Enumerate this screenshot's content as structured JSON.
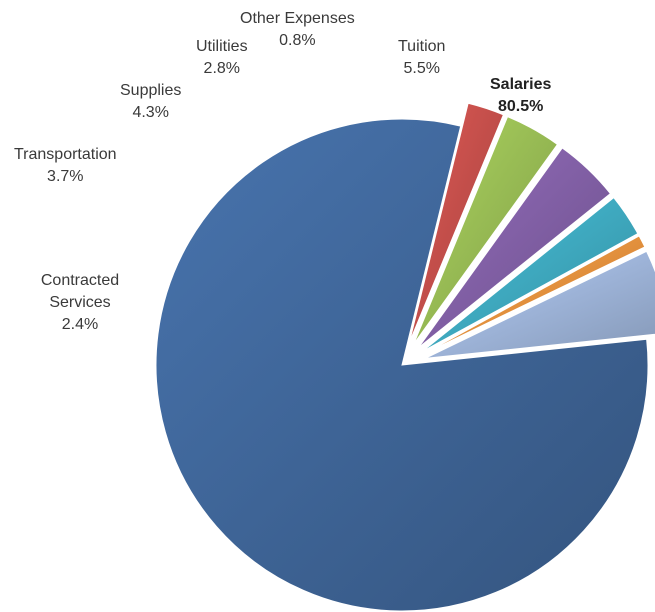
{
  "chart_data": {
    "type": "pie",
    "exploded": true,
    "slices": [
      {
        "name": "Salaries",
        "value": 80.5,
        "label": "80.5%",
        "color": "#3b5f8f",
        "bold": true
      },
      {
        "name": "Contracted Services",
        "value": 2.4,
        "label": "2.4%",
        "color": "#b84a46"
      },
      {
        "name": "Transportation",
        "value": 3.7,
        "label": "3.7%",
        "color": "#8fb04f"
      },
      {
        "name": "Supplies",
        "value": 4.3,
        "label": "4.3%",
        "color": "#7a5a9c"
      },
      {
        "name": "Utilities",
        "value": 2.8,
        "label": "2.8%",
        "color": "#3ba0b5"
      },
      {
        "name": "Other Expenses",
        "value": 0.8,
        "label": "0.8%",
        "color": "#e0893a"
      },
      {
        "name": "Tuition",
        "value": 5.5,
        "label": "5.5%",
        "color": "#95aacd"
      }
    ]
  }
}
